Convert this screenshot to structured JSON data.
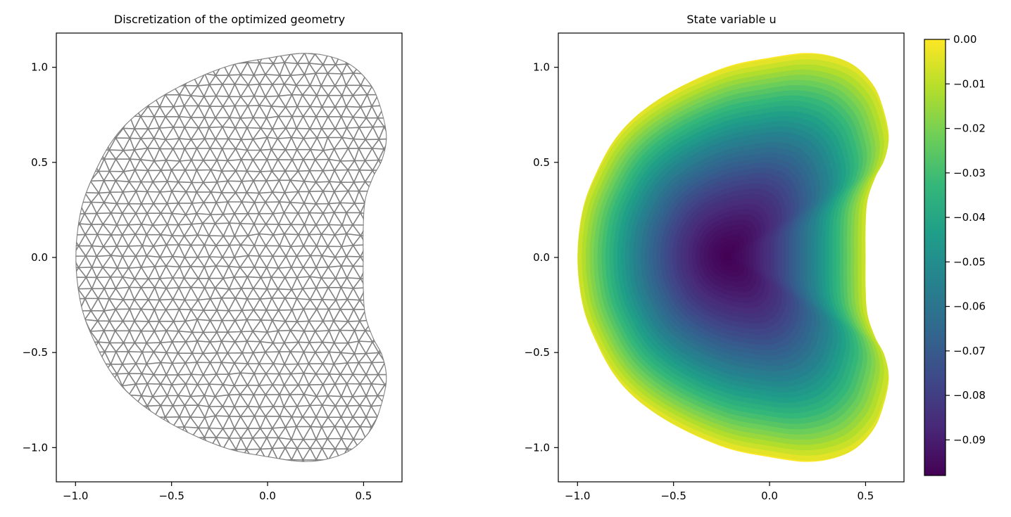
{
  "chart_data": [
    {
      "type": "mesh",
      "title": "Discretization of the optimized geometry",
      "xlabel": "",
      "ylabel": "",
      "xlim": [
        -1.1,
        0.7
      ],
      "ylim": [
        -1.18,
        1.18
      ],
      "xticks": [
        -1.0,
        -0.5,
        0.0,
        0.5
      ],
      "xtick_labels": [
        "−1.0",
        "−0.5",
        "0.0",
        "0.5"
      ],
      "yticks": [
        1.0,
        0.5,
        0.0,
        -0.5,
        -1.0
      ],
      "ytick_labels": [
        "1.0",
        "0.5",
        "0.0",
        "−0.5",
        "−1.0"
      ],
      "mesh_color": "#808080",
      "grid": false,
      "boundary_outline": [
        [
          -1.0,
          0.0
        ],
        [
          -0.99,
          0.15
        ],
        [
          -0.96,
          0.3
        ],
        [
          -0.9,
          0.45
        ],
        [
          -0.82,
          0.6
        ],
        [
          -0.72,
          0.72
        ],
        [
          -0.58,
          0.83
        ],
        [
          -0.4,
          0.93
        ],
        [
          -0.2,
          1.01
        ],
        [
          0.0,
          1.05
        ],
        [
          0.18,
          1.075
        ],
        [
          0.32,
          1.06
        ],
        [
          0.44,
          1.01
        ],
        [
          0.53,
          0.92
        ],
        [
          0.58,
          0.82
        ],
        [
          0.62,
          0.65
        ],
        [
          0.6,
          0.52
        ],
        [
          0.55,
          0.42
        ],
        [
          0.51,
          0.3
        ],
        [
          0.5,
          0.15
        ],
        [
          0.5,
          0.0
        ],
        [
          0.5,
          -0.15
        ],
        [
          0.51,
          -0.3
        ],
        [
          0.55,
          -0.42
        ],
        [
          0.6,
          -0.52
        ],
        [
          0.62,
          -0.65
        ],
        [
          0.58,
          -0.82
        ],
        [
          0.53,
          -0.92
        ],
        [
          0.44,
          -1.01
        ],
        [
          0.32,
          -1.06
        ],
        [
          0.18,
          -1.075
        ],
        [
          0.0,
          -1.05
        ],
        [
          -0.2,
          -1.01
        ],
        [
          -0.4,
          -0.93
        ],
        [
          -0.58,
          -0.83
        ],
        [
          -0.72,
          -0.72
        ],
        [
          -0.82,
          -0.6
        ],
        [
          -0.9,
          -0.45
        ],
        [
          -0.96,
          -0.3
        ],
        [
          -0.99,
          -0.15
        ]
      ]
    },
    {
      "type": "contourf",
      "title": "State variable u",
      "xlabel": "",
      "ylabel": "",
      "xlim": [
        -1.1,
        0.7
      ],
      "ylim": [
        -1.18,
        1.18
      ],
      "xticks": [
        -1.0,
        -0.5,
        0.0,
        0.5
      ],
      "xtick_labels": [
        "−1.0",
        "−0.5",
        "0.0",
        "0.5"
      ],
      "yticks": [
        1.0,
        0.5,
        0.0,
        -0.5,
        -1.0
      ],
      "ytick_labels": [
        "1.0",
        "0.5",
        "0.0",
        "−0.5",
        "−1.0"
      ],
      "minimum_location": [
        -0.22,
        0.01
      ],
      "minimum_value": -0.098,
      "maximum_value": 0.0,
      "colormap": "viridis",
      "colormap_stops": [
        "#440154",
        "#482878",
        "#3e4989",
        "#31688e",
        "#26828e",
        "#1f9e89",
        "#35b779",
        "#6ece58",
        "#b5de2b",
        "#fde725"
      ],
      "colorbar": {
        "vmin": -0.098,
        "vmax": 0.0,
        "ticks": [
          0.0,
          -0.01,
          -0.02,
          -0.03,
          -0.04,
          -0.05,
          -0.06,
          -0.07,
          -0.08,
          -0.09
        ],
        "tick_labels": [
          "0.00",
          "−0.01",
          "−0.02",
          "−0.03",
          "−0.04",
          "−0.05",
          "−0.06",
          "−0.07",
          "−0.08",
          "−0.09"
        ],
        "placement": "right"
      }
    }
  ]
}
